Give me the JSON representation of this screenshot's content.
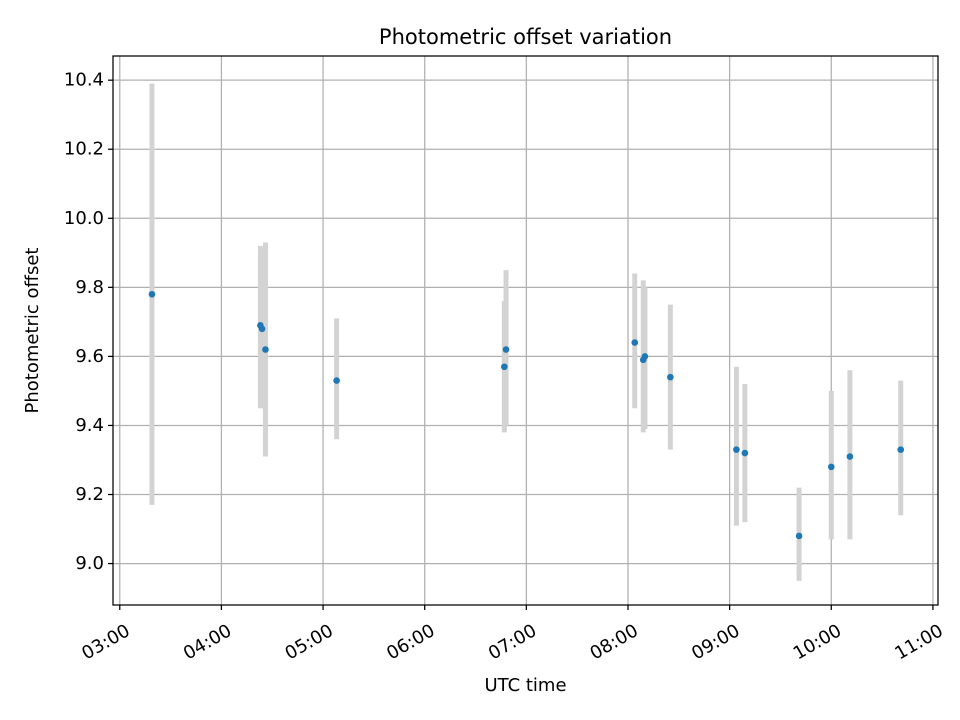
{
  "chart_data": {
    "type": "scatter",
    "title": "Photometric offset variation",
    "xlabel": "UTC time",
    "ylabel": "Photometric offset",
    "x_ticks": [
      "03:00",
      "04:00",
      "05:00",
      "06:00",
      "07:00",
      "08:00",
      "09:00",
      "10:00",
      "11:00"
    ],
    "y_ticks": [
      "9.0",
      "9.2",
      "9.4",
      "9.6",
      "9.8",
      "10.0",
      "10.2",
      "10.4"
    ],
    "xlim": [
      "02:56",
      "11:03"
    ],
    "ylim": [
      8.88,
      10.47
    ],
    "grid": true,
    "legend": "none",
    "marker_color": "#1f77b4",
    "errorbar_color": "#d3d3d3",
    "points": [
      {
        "x": "03:19",
        "y": 9.78,
        "ylow": 9.17,
        "yhigh": 10.39
      },
      {
        "x": "04:23",
        "y": 9.69,
        "ylow": 9.45,
        "yhigh": 9.92
      },
      {
        "x": "04:24",
        "y": 9.68,
        "ylow": 9.45,
        "yhigh": 9.91
      },
      {
        "x": "04:26",
        "y": 9.62,
        "ylow": 9.31,
        "yhigh": 9.93
      },
      {
        "x": "05:08",
        "y": 9.53,
        "ylow": 9.36,
        "yhigh": 9.71
      },
      {
        "x": "06:47",
        "y": 9.57,
        "ylow": 9.38,
        "yhigh": 9.76
      },
      {
        "x": "06:48",
        "y": 9.62,
        "ylow": 9.4,
        "yhigh": 9.85
      },
      {
        "x": "08:04",
        "y": 9.64,
        "ylow": 9.45,
        "yhigh": 9.84
      },
      {
        "x": "08:09",
        "y": 9.59,
        "ylow": 9.38,
        "yhigh": 9.82
      },
      {
        "x": "08:10",
        "y": 9.6,
        "ylow": 9.39,
        "yhigh": 9.8
      },
      {
        "x": "08:25",
        "y": 9.54,
        "ylow": 9.33,
        "yhigh": 9.75
      },
      {
        "x": "09:04",
        "y": 9.33,
        "ylow": 9.11,
        "yhigh": 9.57
      },
      {
        "x": "09:09",
        "y": 9.32,
        "ylow": 9.12,
        "yhigh": 9.52
      },
      {
        "x": "09:41",
        "y": 9.08,
        "ylow": 8.95,
        "yhigh": 9.22
      },
      {
        "x": "10:00",
        "y": 9.28,
        "ylow": 9.07,
        "yhigh": 9.5
      },
      {
        "x": "10:11",
        "y": 9.31,
        "ylow": 9.07,
        "yhigh": 9.56
      },
      {
        "x": "10:41",
        "y": 9.33,
        "ylow": 9.14,
        "yhigh": 9.53
      }
    ]
  }
}
